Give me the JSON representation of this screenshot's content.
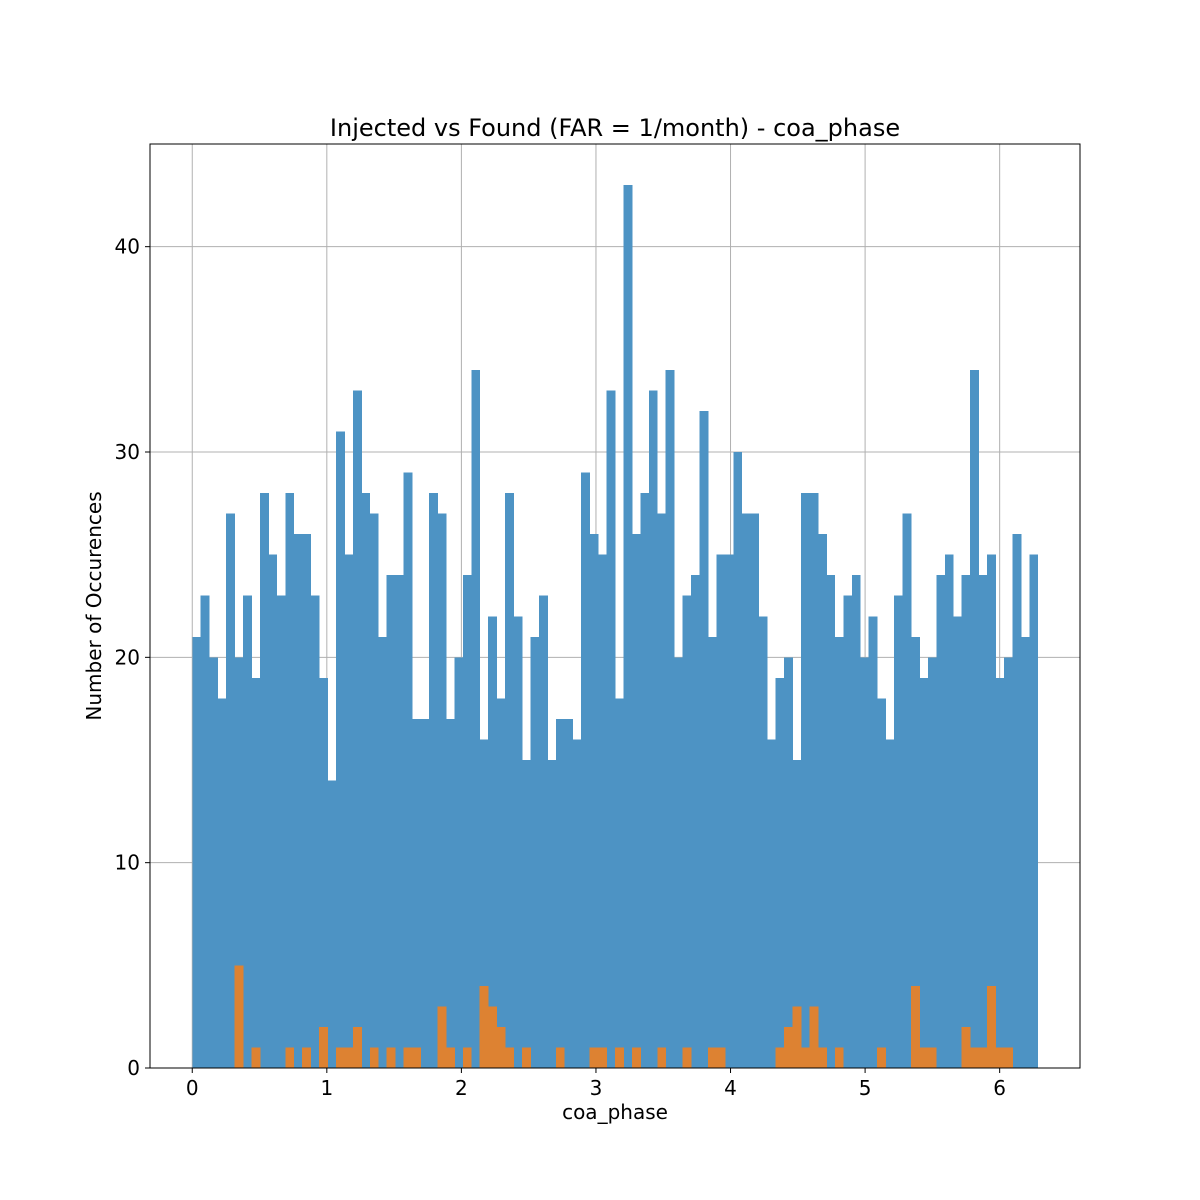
{
  "chart_data": {
    "type": "bar",
    "title": "Injected vs Found (FAR = 1/month) - coa_phase",
    "xlabel": "coa_phase",
    "ylabel": "Number of Occurences",
    "xlim": [
      -0.314,
      6.597
    ],
    "ylim": [
      0,
      45
    ],
    "xticks": [
      0,
      1,
      2,
      3,
      4,
      5,
      6
    ],
    "xtick_labels": [
      "0",
      "1",
      "2",
      "3",
      "4",
      "5",
      "6"
    ],
    "yticks": [
      0,
      10,
      20,
      30,
      40
    ],
    "ytick_labels": [
      "0",
      "10",
      "20",
      "30",
      "40"
    ],
    "grid": true,
    "bins": {
      "start": 0,
      "end": 6.2832,
      "count": 100
    },
    "series": [
      {
        "color": "#4d93c4",
        "values": [
          21,
          23,
          20,
          18,
          27,
          20,
          23,
          19,
          28,
          25,
          23,
          28,
          26,
          26,
          23,
          19,
          14,
          31,
          25,
          33,
          28,
          27,
          21,
          24,
          24,
          29,
          17,
          17,
          28,
          27,
          17,
          20,
          24,
          34,
          16,
          22,
          18,
          28,
          22,
          15,
          21,
          23,
          15,
          17,
          17,
          16,
          29,
          26,
          25,
          33,
          18,
          43,
          26,
          28,
          33,
          27,
          34,
          20,
          23,
          24,
          32,
          21,
          25,
          25,
          30,
          27,
          27,
          22,
          16,
          19,
          20,
          15,
          28,
          28,
          26,
          24,
          21,
          23,
          24,
          20,
          22,
          18,
          16,
          23,
          27,
          21,
          19,
          20,
          24,
          25,
          22,
          24,
          34,
          24,
          25,
          19,
          20,
          26,
          21,
          25
        ]
      },
      {
        "color": "#dd8232",
        "values": [
          0,
          0,
          0,
          0,
          0,
          5,
          0,
          1,
          0,
          0,
          0,
          1,
          0,
          1,
          0,
          2,
          0,
          1,
          1,
          2,
          0,
          1,
          0,
          1,
          0,
          1,
          1,
          0,
          0,
          3,
          1,
          0,
          1,
          0,
          4,
          3,
          2,
          1,
          0,
          1,
          0,
          0,
          0,
          1,
          0,
          0,
          0,
          1,
          1,
          0,
          1,
          0,
          1,
          0,
          0,
          1,
          0,
          0,
          1,
          0,
          0,
          1,
          1,
          0,
          0,
          0,
          0,
          0,
          0,
          1,
          2,
          3,
          1,
          3,
          1,
          0,
          1,
          0,
          0,
          0,
          0,
          1,
          0,
          0,
          0,
          4,
          1,
          1,
          0,
          0,
          0,
          2,
          1,
          1,
          4,
          1,
          1,
          0,
          0,
          0
        ]
      }
    ]
  }
}
